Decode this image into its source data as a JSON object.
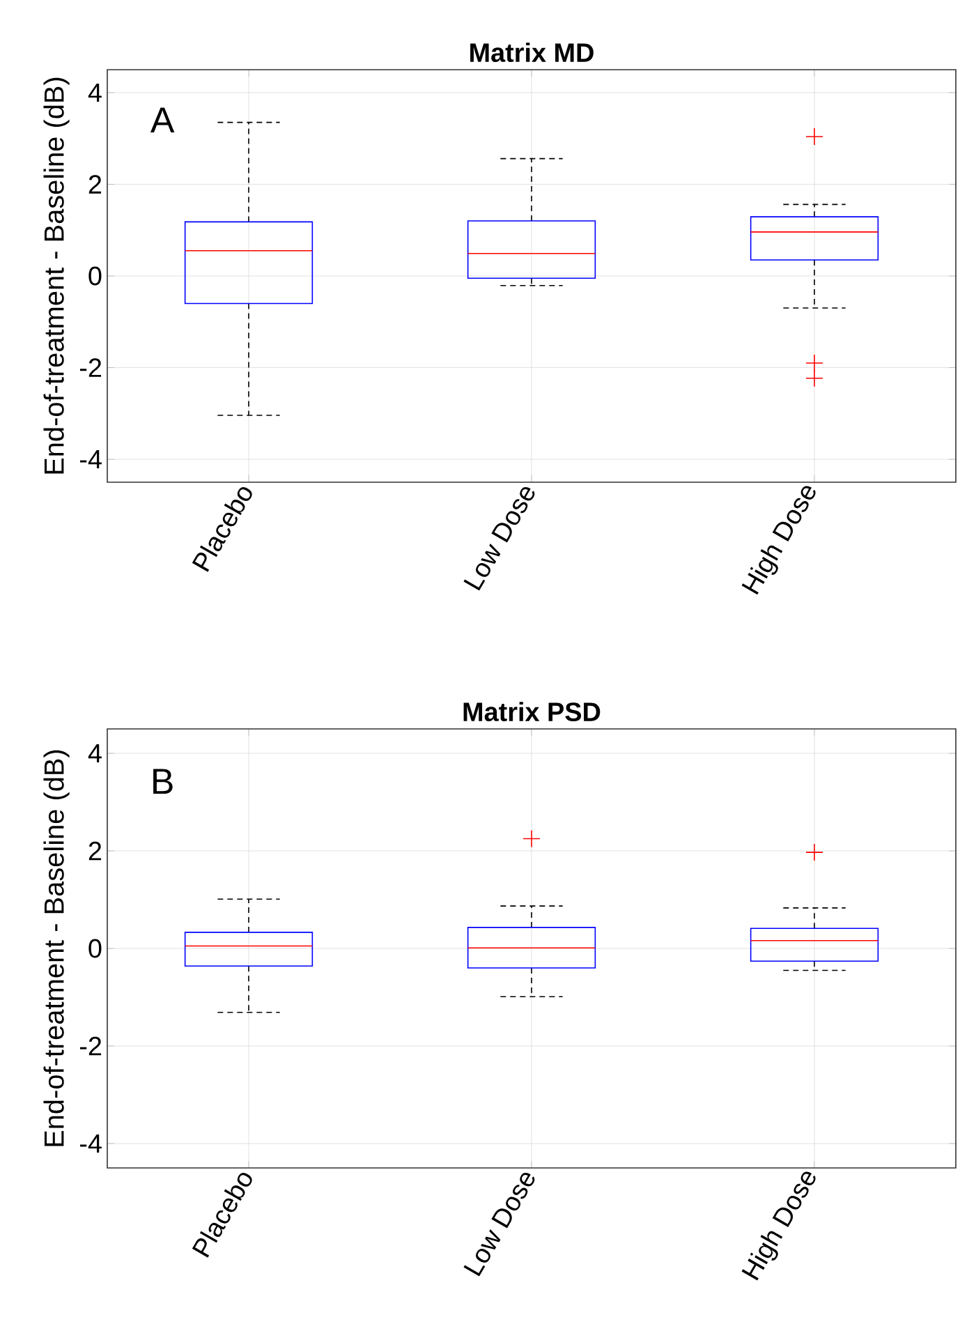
{
  "chart_data": [
    {
      "type": "box",
      "title": "Matrix MD",
      "ylabel": "End-of-treatment - Baseline (dB)",
      "categories": [
        "Placebo",
        "Low Dose",
        "High Dose"
      ],
      "ylim": [
        -4.5,
        4.5
      ],
      "yticks": [
        -4,
        -2,
        0,
        2,
        4
      ],
      "grid": true,
      "annotations": [
        "A"
      ],
      "series": [
        {
          "color": "#0000ff",
          "boxes": [
            {
              "low": -3.04,
              "q1": -0.6,
              "median": 0.55,
              "q3": 1.18,
              "high": 3.35
            },
            {
              "low": -0.21,
              "q1": -0.05,
              "median": 0.49,
              "q3": 1.2,
              "high": 2.56
            },
            {
              "low": -0.7,
              "q1": 0.35,
              "median": 0.96,
              "q3": 1.29,
              "high": 1.56,
              "outliers": [
                3.04,
                -1.9,
                -2.23
              ]
            }
          ]
        }
      ]
    },
    {
      "type": "box",
      "title": "Matrix PSD",
      "ylabel": "End-of-treatment - Baseline (dB)",
      "categories": [
        "Placebo",
        "Low Dose",
        "High Dose"
      ],
      "ylim": [
        -4.5,
        4.5
      ],
      "yticks": [
        -4,
        -2,
        0,
        2,
        4
      ],
      "grid": true,
      "annotations": [
        "B"
      ],
      "series": [
        {
          "color": "#0000ff",
          "boxes": [
            {
              "low": -1.31,
              "q1": -0.36,
              "median": 0.05,
              "q3": 0.33,
              "high": 1.01
            },
            {
              "low": -0.99,
              "q1": -0.4,
              "median": 0.01,
              "q3": 0.43,
              "high": 0.87,
              "outliers": [
                2.25
              ]
            },
            {
              "low": -0.45,
              "q1": -0.26,
              "median": 0.16,
              "q3": 0.41,
              "high": 0.83,
              "outliers": [
                1.97
              ]
            }
          ]
        }
      ]
    }
  ]
}
